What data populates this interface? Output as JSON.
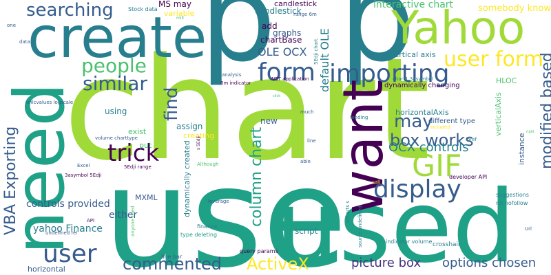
{
  "palette": {
    "light_green": "#a0da39",
    "green": "#4ac16d",
    "teal": "#1fa187",
    "cyan_blue": "#277f8e",
    "slate_blue": "#365c8d",
    "indigo": "#46327e",
    "dark_purple": "#440154",
    "yellow": "#fde725"
  },
  "words": [
    {
      "id": "chart",
      "text": "chart"
    },
    {
      "id": "use",
      "text": "use"
    },
    {
      "id": "p",
      "text": "p"
    },
    {
      "id": "used",
      "text": "used"
    },
    {
      "id": "need",
      "text": "need"
    },
    {
      "id": "create",
      "text": "create"
    },
    {
      "id": "want",
      "text": "want"
    },
    {
      "id": "yahoo",
      "text": "Yahoo"
    },
    {
      "id": "gif",
      "text": "GIF"
    },
    {
      "id": "display",
      "text": "display"
    },
    {
      "id": "importing",
      "text": "importing"
    },
    {
      "id": "form",
      "text": "form"
    },
    {
      "id": "user_form",
      "text": "user form"
    },
    {
      "id": "searching",
      "text": "searching"
    },
    {
      "id": "people",
      "text": "people"
    },
    {
      "id": "similar",
      "text": "similar"
    },
    {
      "id": "find",
      "text": "find"
    },
    {
      "id": "trick",
      "text": "trick"
    },
    {
      "id": "may",
      "text": "may"
    },
    {
      "id": "box_works",
      "text": "box works"
    },
    {
      "id": "ocx_controls",
      "text": "OCX controls"
    },
    {
      "id": "modified_based",
      "text": "modified based"
    },
    {
      "id": "column_chart",
      "text": "column chart"
    },
    {
      "id": "vba_exporting",
      "text": "VBA Exporting"
    },
    {
      "id": "user",
      "text": "user"
    },
    {
      "id": "commented",
      "text": "commented"
    },
    {
      "id": "activex",
      "text": "ActiveX"
    },
    {
      "id": "picture_box",
      "text": "picture box"
    },
    {
      "id": "options_chosen",
      "text": "options chosen"
    },
    {
      "id": "ole_ocx",
      "text": "OLE OCX"
    },
    {
      "id": "default_ole",
      "text": "default OLE"
    },
    {
      "id": "interactive_chart",
      "text": "interactive chart"
    },
    {
      "id": "somebody_know",
      "text": "somebody know"
    },
    {
      "id": "ms_may",
      "text": "MS may"
    },
    {
      "id": "candlestick",
      "text": "candlestick"
    },
    {
      "id": "add",
      "text": "add"
    },
    {
      "id": "graphs",
      "text": "graphs"
    },
    {
      "id": "chartbase",
      "text": "chartBase"
    },
    {
      "id": "variable",
      "text": "variable"
    },
    {
      "id": "vertical_axis",
      "text": "vertical axis"
    },
    {
      "id": "hloc",
      "text": "HLOC"
    },
    {
      "id": "verticalaxis",
      "text": "verticalAxis"
    },
    {
      "id": "horizontalaxis",
      "text": "horizontalAxis"
    },
    {
      "id": "different_type",
      "text": "different type"
    },
    {
      "id": "instance",
      "text": "instance"
    },
    {
      "id": "dynamically_changing",
      "text": "dynamically changing"
    },
    {
      "id": "controls_provided",
      "text": "controls provided"
    },
    {
      "id": "yahoo_finance",
      "text": "yahoo Finance"
    },
    {
      "id": "either",
      "text": "either"
    },
    {
      "id": "horizontal",
      "text": "horizontal"
    },
    {
      "id": "mxml",
      "text": "MXML"
    },
    {
      "id": "using",
      "text": "using"
    },
    {
      "id": "assign",
      "text": "assign"
    },
    {
      "id": "exist",
      "text": "exist"
    },
    {
      "id": "creating",
      "text": "creating"
    },
    {
      "id": "new",
      "text": "new"
    },
    {
      "id": "put",
      "text": "put"
    },
    {
      "id": "script",
      "text": "script"
    },
    {
      "id": "dynamically_created",
      "text": "dynamically created"
    },
    {
      "id": "crosshair",
      "text": "crosshair"
    },
    {
      "id": "indicator_volume",
      "text": "indicator volume"
    },
    {
      "id": "developer_api",
      "text": "developer API"
    },
    {
      "id": "suggestions",
      "text": "suggestions"
    },
    {
      "id": "rel_nofollow",
      "text": "rel nofollow"
    },
    {
      "id": "finance",
      "text": "finance"
    },
    {
      "id": "type_deleting",
      "text": "type deleting"
    },
    {
      "id": "query_params",
      "text": "query params"
    },
    {
      "id": "line_bar",
      "text": "line bar"
    },
    {
      "id": "stock_data",
      "text": "Stock data"
    },
    {
      "id": "one",
      "text": "one"
    },
    {
      "id": "data",
      "text": "data"
    },
    {
      "id": "ohlcvalues_logscale",
      "text": "ohlcvalues logscale"
    },
    {
      "id": "volume_charttype",
      "text": "volume charttype"
    },
    {
      "id": "excel",
      "text": "Excel"
    },
    {
      "id": "3asymbol_5edji",
      "text": "3asymbol 5Edji"
    },
    {
      "id": "5edji_range",
      "text": "5Edji range"
    },
    {
      "id": "range_6m",
      "text": "range 6m"
    },
    {
      "id": "sedji_chart",
      "text": "5Edji chart"
    },
    {
      "id": "chart_3asymbol",
      "text": "chart1 3asymbol"
    },
    {
      "id": "6m_indicator",
      "text": "6m indicator"
    },
    {
      "id": "net_application",
      "text": "NET application"
    },
    {
      "id": "analysis",
      "text": "analysis"
    },
    {
      "id": "much",
      "text": "much"
    },
    {
      "id": "feeding",
      "text": "feeding"
    },
    {
      "id": "included",
      "text": "included"
    },
    {
      "id": "href",
      "text": "href"
    },
    {
      "id": "line",
      "text": "line"
    },
    {
      "id": "able",
      "text": "able"
    },
    {
      "id": "call",
      "text": "call"
    },
    {
      "id": "echarts_s",
      "text": "echarts s"
    },
    {
      "id": "source_undefined",
      "text": "source undefined"
    },
    {
      "id": "undefined_rel",
      "text": "undefined rel"
    },
    {
      "id": "api",
      "text": "API"
    },
    {
      "id": "anyone_tried",
      "text": "anyone tried"
    },
    {
      "id": "although",
      "text": "Although"
    },
    {
      "id": "leverage",
      "text": "leverage"
    },
    {
      "id": "url",
      "text": "Url"
    },
    {
      "id": "s_5edji",
      "text": "s 5Edji"
    },
    {
      "id": "mill",
      "text": "mill"
    },
    {
      "id": "right",
      "text": "right"
    },
    {
      "id": "click",
      "text": "click"
    }
  ]
}
